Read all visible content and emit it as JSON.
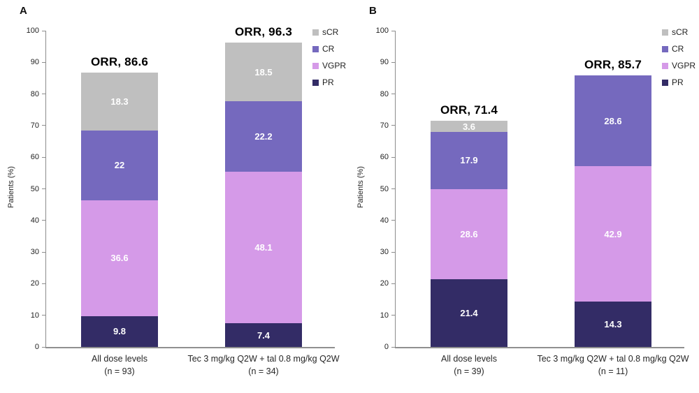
{
  "figure": {
    "background": "#ffffff",
    "axis_color": "#8c8c8c",
    "tick_text_color": "#1f1f1f",
    "segment_label_color": "#ffffff",
    "annotation_color": "#000000",
    "series_colors": {
      "sCR": "#BFBFBF",
      "CR": "#7569BE",
      "VGPR": "#D59AE8",
      "PR": "#332C66"
    }
  },
  "chart_data": [
    {
      "type": "bar",
      "stacked": true,
      "panel_label": "A",
      "title": "",
      "xlabel": "",
      "ylabel": "Patients (%)",
      "ylim": [
        0,
        100
      ],
      "yticks": [
        0,
        10,
        20,
        30,
        40,
        50,
        60,
        70,
        80,
        90,
        100
      ],
      "grid": false,
      "legend_position": "top-right",
      "legend_order": [
        "sCR",
        "CR",
        "VGPR",
        "PR"
      ],
      "categories": [
        {
          "line1": "All dose levels",
          "line2": "(n = 93)"
        },
        {
          "line1": "Tec 3 mg/kg Q2W + tal 0.8 mg/kg Q2W",
          "line2": "(n = 34)"
        }
      ],
      "annotations": [
        "ORR, 86.6",
        "ORR, 96.3"
      ],
      "series": [
        {
          "name": "PR",
          "color": "#332C66",
          "values": [
            9.8,
            7.4
          ]
        },
        {
          "name": "VGPR",
          "color": "#D59AE8",
          "values": [
            36.6,
            48.1
          ]
        },
        {
          "name": "CR",
          "color": "#7569BE",
          "values": [
            22,
            22.2
          ]
        },
        {
          "name": "sCR",
          "color": "#BFBFBF",
          "values": [
            18.3,
            18.5
          ]
        }
      ]
    },
    {
      "type": "bar",
      "stacked": true,
      "panel_label": "B",
      "title": "",
      "xlabel": "",
      "ylabel": "Patients (%)",
      "ylim": [
        0,
        100
      ],
      "yticks": [
        0,
        10,
        20,
        30,
        40,
        50,
        60,
        70,
        80,
        90,
        100
      ],
      "grid": false,
      "legend_position": "top-right",
      "legend_order": [
        "sCR",
        "CR",
        "VGPR",
        "PR"
      ],
      "categories": [
        {
          "line1": "All dose levels",
          "line2": "(n = 39)"
        },
        {
          "line1": "Tec 3 mg/kg Q2W + tal 0.8 mg/kg Q2W",
          "line2": "(n = 11)"
        }
      ],
      "annotations": [
        "ORR, 71.4",
        "ORR, 85.7"
      ],
      "series": [
        {
          "name": "PR",
          "color": "#332C66",
          "values": [
            21.4,
            14.3
          ]
        },
        {
          "name": "VGPR",
          "color": "#D59AE8",
          "values": [
            28.6,
            42.9
          ]
        },
        {
          "name": "CR",
          "color": "#7569BE",
          "values": [
            17.9,
            28.6
          ]
        },
        {
          "name": "sCR",
          "color": "#BFBFBF",
          "values": [
            3.6,
            0
          ]
        }
      ]
    }
  ]
}
